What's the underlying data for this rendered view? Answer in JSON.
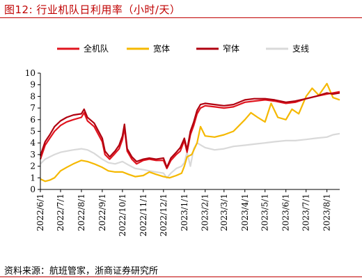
{
  "header": {
    "title": "图12:  行业机队日利用率（小时/天）"
  },
  "footer": {
    "source": "资料来源：航班管家，浙商证券研究所"
  },
  "chart_data": {
    "type": "line",
    "title": "行业机队日利用率（小时/天）",
    "xlabel": "",
    "ylabel": "",
    "ylim": [
      0,
      10
    ],
    "yticks": [
      "0",
      "1",
      "2",
      "3",
      "4",
      "5",
      "6",
      "7",
      "8",
      "9",
      "10"
    ],
    "x_range": [
      "2022-06-01",
      "2023-08-20"
    ],
    "xticks": [
      "2022/6/1",
      "2022/7/1",
      "2022/8/1",
      "2022/9/1",
      "2022/10/1",
      "2022/11/1",
      "2022/12/1",
      "2023/1/1",
      "2023/2/1",
      "2023/3/1",
      "2023/4/1",
      "2023/5/1",
      "2023/6/1",
      "2023/7/1",
      "2023/8/1"
    ],
    "legend_position": "top",
    "grid": false,
    "series": [
      {
        "name": "全机队",
        "color": "#e0141e",
        "points": [
          [
            "2022-06-01",
            2.6
          ],
          [
            "2022-06-08",
            3.8
          ],
          [
            "2022-06-15",
            4.4
          ],
          [
            "2022-06-22",
            5.0
          ],
          [
            "2022-07-01",
            5.5
          ],
          [
            "2022-07-10",
            5.8
          ],
          [
            "2022-07-20",
            6.0
          ],
          [
            "2022-08-01",
            6.2
          ],
          [
            "2022-08-05",
            6.6
          ],
          [
            "2022-08-10",
            5.9
          ],
          [
            "2022-08-20",
            5.4
          ],
          [
            "2022-09-01",
            4.1
          ],
          [
            "2022-09-05",
            3.0
          ],
          [
            "2022-09-12",
            2.6
          ],
          [
            "2022-09-20",
            3.1
          ],
          [
            "2022-09-26",
            3.5
          ],
          [
            "2022-10-01",
            4.3
          ],
          [
            "2022-10-04",
            5.3
          ],
          [
            "2022-10-08",
            3.3
          ],
          [
            "2022-10-15",
            2.6
          ],
          [
            "2022-10-22",
            2.2
          ],
          [
            "2022-11-01",
            2.5
          ],
          [
            "2022-11-10",
            2.6
          ],
          [
            "2022-11-20",
            2.5
          ],
          [
            "2022-12-01",
            2.5
          ],
          [
            "2022-12-06",
            1.8
          ],
          [
            "2022-12-12",
            2.5
          ],
          [
            "2022-12-20",
            3.0
          ],
          [
            "2022-12-26",
            3.3
          ],
          [
            "2023-01-01",
            4.2
          ],
          [
            "2023-01-05",
            3.2
          ],
          [
            "2023-01-10",
            4.7
          ],
          [
            "2023-01-15",
            5.5
          ],
          [
            "2023-01-20",
            6.5
          ],
          [
            "2023-01-25",
            7.0
          ],
          [
            "2023-02-01",
            7.2
          ],
          [
            "2023-02-15",
            7.1
          ],
          [
            "2023-03-01",
            7.0
          ],
          [
            "2023-03-15",
            7.1
          ],
          [
            "2023-04-01",
            7.5
          ],
          [
            "2023-04-15",
            7.6
          ],
          [
            "2023-05-01",
            7.7
          ],
          [
            "2023-05-15",
            7.6
          ],
          [
            "2023-06-01",
            7.4
          ],
          [
            "2023-06-15",
            7.5
          ],
          [
            "2023-07-01",
            7.8
          ],
          [
            "2023-07-15",
            8.0
          ],
          [
            "2023-08-01",
            8.2
          ],
          [
            "2023-08-10",
            8.3
          ],
          [
            "2023-08-20",
            8.4
          ]
        ]
      },
      {
        "name": "宽体",
        "color": "#f5b800",
        "points": [
          [
            "2022-06-01",
            0.9
          ],
          [
            "2022-06-08",
            0.7
          ],
          [
            "2022-06-15",
            0.8
          ],
          [
            "2022-06-22",
            1.0
          ],
          [
            "2022-07-01",
            1.6
          ],
          [
            "2022-07-10",
            1.9
          ],
          [
            "2022-07-20",
            2.2
          ],
          [
            "2022-08-01",
            2.5
          ],
          [
            "2022-08-10",
            2.4
          ],
          [
            "2022-08-20",
            2.2
          ],
          [
            "2022-09-01",
            1.9
          ],
          [
            "2022-09-10",
            1.6
          ],
          [
            "2022-09-20",
            1.5
          ],
          [
            "2022-10-01",
            1.5
          ],
          [
            "2022-10-10",
            1.3
          ],
          [
            "2022-10-20",
            1.1
          ],
          [
            "2022-11-01",
            1.2
          ],
          [
            "2022-11-10",
            1.5
          ],
          [
            "2022-11-20",
            1.3
          ],
          [
            "2022-12-01",
            1.1
          ],
          [
            "2022-12-10",
            1.0
          ],
          [
            "2022-12-20",
            1.2
          ],
          [
            "2022-12-28",
            1.4
          ],
          [
            "2023-01-01",
            2.0
          ],
          [
            "2023-01-05",
            2.8
          ],
          [
            "2023-01-12",
            3.0
          ],
          [
            "2023-01-20",
            4.0
          ],
          [
            "2023-01-25",
            5.4
          ],
          [
            "2023-02-01",
            4.6
          ],
          [
            "2023-02-15",
            4.5
          ],
          [
            "2023-03-01",
            4.7
          ],
          [
            "2023-03-15",
            5.0
          ],
          [
            "2023-04-01",
            6.0
          ],
          [
            "2023-04-10",
            6.6
          ],
          [
            "2023-04-20",
            6.2
          ],
          [
            "2023-05-01",
            5.8
          ],
          [
            "2023-05-10",
            7.4
          ],
          [
            "2023-05-20",
            6.2
          ],
          [
            "2023-06-01",
            6.0
          ],
          [
            "2023-06-10",
            6.9
          ],
          [
            "2023-06-20",
            6.5
          ],
          [
            "2023-07-01",
            8.0
          ],
          [
            "2023-07-10",
            8.7
          ],
          [
            "2023-07-20",
            8.1
          ],
          [
            "2023-08-01",
            9.1
          ],
          [
            "2023-08-10",
            7.9
          ],
          [
            "2023-08-20",
            7.7
          ]
        ]
      },
      {
        "name": "窄体",
        "color": "#b0000f",
        "points": [
          [
            "2022-06-01",
            2.9
          ],
          [
            "2022-06-08",
            4.1
          ],
          [
            "2022-06-15",
            4.7
          ],
          [
            "2022-06-22",
            5.4
          ],
          [
            "2022-07-01",
            5.9
          ],
          [
            "2022-07-10",
            6.2
          ],
          [
            "2022-07-20",
            6.4
          ],
          [
            "2022-08-01",
            6.5
          ],
          [
            "2022-08-05",
            6.9
          ],
          [
            "2022-08-10",
            6.2
          ],
          [
            "2022-08-20",
            5.7
          ],
          [
            "2022-09-01",
            4.4
          ],
          [
            "2022-09-05",
            3.3
          ],
          [
            "2022-09-12",
            2.8
          ],
          [
            "2022-09-20",
            3.3
          ],
          [
            "2022-09-26",
            3.8
          ],
          [
            "2022-10-01",
            4.6
          ],
          [
            "2022-10-04",
            5.6
          ],
          [
            "2022-10-08",
            3.5
          ],
          [
            "2022-10-15",
            2.8
          ],
          [
            "2022-10-22",
            2.4
          ],
          [
            "2022-11-01",
            2.6
          ],
          [
            "2022-11-10",
            2.7
          ],
          [
            "2022-11-20",
            2.6
          ],
          [
            "2022-12-01",
            2.7
          ],
          [
            "2022-12-06",
            1.9
          ],
          [
            "2022-12-12",
            2.7
          ],
          [
            "2022-12-20",
            3.2
          ],
          [
            "2022-12-26",
            3.6
          ],
          [
            "2023-01-01",
            4.4
          ],
          [
            "2023-01-05",
            3.4
          ],
          [
            "2023-01-10",
            5.0
          ],
          [
            "2023-01-15",
            5.8
          ],
          [
            "2023-01-20",
            6.8
          ],
          [
            "2023-01-25",
            7.3
          ],
          [
            "2023-02-01",
            7.4
          ],
          [
            "2023-02-15",
            7.3
          ],
          [
            "2023-03-01",
            7.2
          ],
          [
            "2023-03-15",
            7.3
          ],
          [
            "2023-04-01",
            7.7
          ],
          [
            "2023-04-15",
            7.8
          ],
          [
            "2023-05-01",
            7.8
          ],
          [
            "2023-05-15",
            7.7
          ],
          [
            "2023-06-01",
            7.5
          ],
          [
            "2023-06-15",
            7.6
          ],
          [
            "2023-07-01",
            7.8
          ],
          [
            "2023-07-15",
            8.0
          ],
          [
            "2023-08-01",
            8.3
          ],
          [
            "2023-08-10",
            8.2
          ],
          [
            "2023-08-20",
            8.3
          ]
        ]
      },
      {
        "name": "支线",
        "color": "#d9d9d9",
        "points": [
          [
            "2022-06-01",
            2.2
          ],
          [
            "2022-06-08",
            2.6
          ],
          [
            "2022-06-15",
            2.8
          ],
          [
            "2022-06-22",
            3.0
          ],
          [
            "2022-07-01",
            3.2
          ],
          [
            "2022-07-10",
            3.3
          ],
          [
            "2022-07-20",
            3.4
          ],
          [
            "2022-08-01",
            3.5
          ],
          [
            "2022-08-10",
            3.4
          ],
          [
            "2022-08-20",
            3.1
          ],
          [
            "2022-09-01",
            2.6
          ],
          [
            "2022-09-10",
            2.3
          ],
          [
            "2022-09-20",
            2.2
          ],
          [
            "2022-10-01",
            2.4
          ],
          [
            "2022-10-10",
            2.1
          ],
          [
            "2022-10-20",
            1.8
          ],
          [
            "2022-11-01",
            1.7
          ],
          [
            "2022-11-10",
            1.6
          ],
          [
            "2022-11-20",
            1.5
          ],
          [
            "2022-12-01",
            1.4
          ],
          [
            "2022-12-06",
            1.0
          ],
          [
            "2022-12-12",
            1.4
          ],
          [
            "2022-12-20",
            1.8
          ],
          [
            "2022-12-28",
            2.0
          ],
          [
            "2023-01-01",
            2.3
          ],
          [
            "2023-01-05",
            3.2
          ],
          [
            "2023-01-10",
            2.0
          ],
          [
            "2023-01-15",
            3.5
          ],
          [
            "2023-01-20",
            4.0
          ],
          [
            "2023-02-01",
            3.6
          ],
          [
            "2023-02-15",
            3.4
          ],
          [
            "2023-03-01",
            3.5
          ],
          [
            "2023-03-15",
            3.7
          ],
          [
            "2023-04-01",
            3.8
          ],
          [
            "2023-04-15",
            3.9
          ],
          [
            "2023-05-01",
            4.0
          ],
          [
            "2023-05-15",
            4.1
          ],
          [
            "2023-06-01",
            4.2
          ],
          [
            "2023-06-15",
            4.2
          ],
          [
            "2023-07-01",
            4.3
          ],
          [
            "2023-07-15",
            4.4
          ],
          [
            "2023-08-01",
            4.5
          ],
          [
            "2023-08-10",
            4.7
          ],
          [
            "2023-08-20",
            4.8
          ]
        ]
      }
    ]
  }
}
